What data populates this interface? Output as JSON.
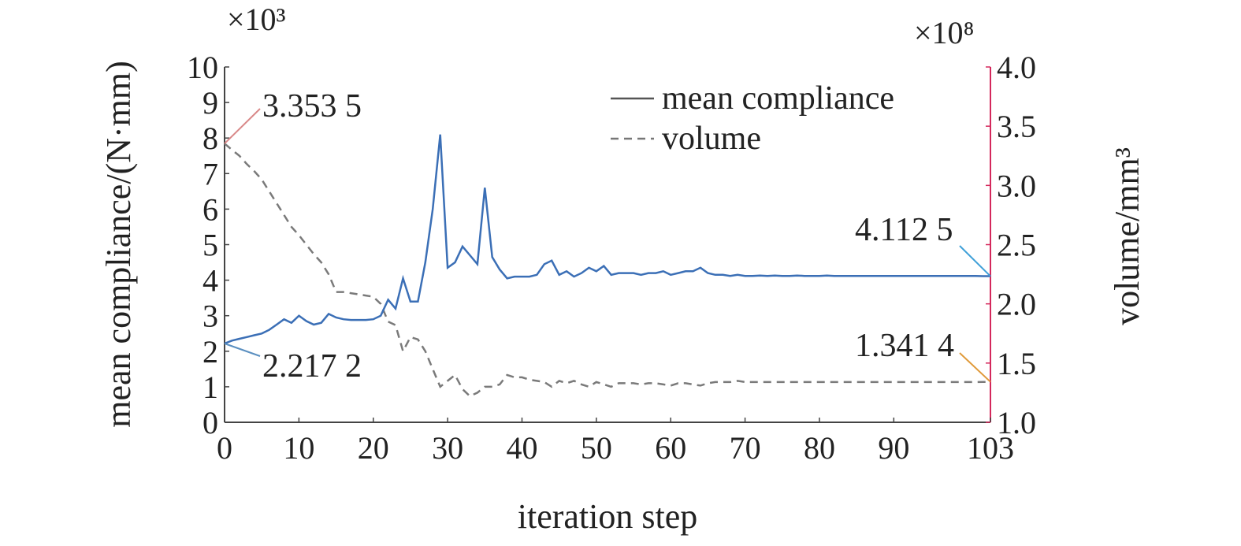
{
  "chart_data": {
    "type": "line",
    "xlabel": "iteration step",
    "ylabel_left": "mean compliance/(N·mm)",
    "ylabel_right": "volume/mm³",
    "left_multiplier": "×10³",
    "right_multiplier": "×10⁸",
    "xlim": [
      0,
      103
    ],
    "ylim_left": [
      0,
      10
    ],
    "ylim_right": [
      1.0,
      4.0
    ],
    "x_ticks": [
      0,
      10,
      20,
      30,
      40,
      50,
      60,
      70,
      80,
      90,
      103
    ],
    "y_left_ticks": [
      0,
      1,
      2,
      3,
      4,
      5,
      6,
      7,
      8,
      9,
      10
    ],
    "y_right_ticks": [
      "1.0",
      "1.5",
      "2.0",
      "2.5",
      "3.0",
      "3.5",
      "4.0"
    ],
    "grid": false,
    "legend_position": "top-right",
    "series": [
      {
        "name": "mean compliance",
        "axis": "left",
        "style": "solid",
        "color": "#3b6fb6",
        "x": [
          0,
          1,
          2,
          3,
          4,
          5,
          6,
          7,
          8,
          9,
          10,
          11,
          12,
          13,
          14,
          15,
          16,
          17,
          18,
          19,
          20,
          21,
          22,
          23,
          24,
          25,
          26,
          27,
          28,
          29,
          30,
          31,
          32,
          33,
          34,
          35,
          36,
          37,
          38,
          39,
          40,
          41,
          42,
          43,
          44,
          45,
          46,
          47,
          48,
          49,
          50,
          51,
          52,
          53,
          54,
          55,
          56,
          57,
          58,
          59,
          60,
          61,
          62,
          63,
          64,
          65,
          66,
          67,
          68,
          69,
          70,
          71,
          72,
          73,
          74,
          75,
          76,
          77,
          78,
          79,
          80,
          81,
          82,
          83,
          84,
          85,
          86,
          87,
          88,
          89,
          90,
          91,
          92,
          93,
          94,
          95,
          96,
          97,
          98,
          99,
          100,
          101,
          102,
          103
        ],
        "values": [
          2.2172,
          2.3,
          2.35,
          2.4,
          2.45,
          2.5,
          2.6,
          2.75,
          2.9,
          2.8,
          3.0,
          2.85,
          2.75,
          2.8,
          3.05,
          2.95,
          2.9,
          2.88,
          2.88,
          2.88,
          2.9,
          3.0,
          3.45,
          3.2,
          4.05,
          3.4,
          3.4,
          4.5,
          6.0,
          8.1,
          4.35,
          4.5,
          4.95,
          4.7,
          4.45,
          6.6,
          4.65,
          4.3,
          4.05,
          4.1,
          4.1,
          4.1,
          4.15,
          4.45,
          4.55,
          4.15,
          4.25,
          4.1,
          4.2,
          4.35,
          4.25,
          4.4,
          4.15,
          4.2,
          4.2,
          4.2,
          4.15,
          4.2,
          4.2,
          4.25,
          4.15,
          4.2,
          4.25,
          4.25,
          4.35,
          4.2,
          4.15,
          4.15,
          4.12,
          4.15,
          4.12,
          4.12,
          4.13,
          4.12,
          4.13,
          4.12,
          4.12,
          4.13,
          4.12,
          4.12,
          4.12,
          4.13,
          4.12,
          4.12,
          4.12,
          4.12,
          4.12,
          4.12,
          4.12,
          4.12,
          4.12,
          4.12,
          4.12,
          4.12,
          4.12,
          4.12,
          4.12,
          4.12,
          4.12,
          4.12,
          4.12,
          4.12,
          4.1125,
          4.1125
        ]
      },
      {
        "name": "volume",
        "axis": "right",
        "style": "dashed",
        "color": "#7a7a7a",
        "x": [
          0,
          1,
          2,
          3,
          4,
          5,
          6,
          7,
          8,
          9,
          10,
          11,
          12,
          13,
          14,
          15,
          16,
          17,
          18,
          19,
          20,
          21,
          22,
          23,
          24,
          25,
          26,
          27,
          28,
          29,
          30,
          31,
          32,
          33,
          34,
          35,
          36,
          37,
          38,
          39,
          40,
          41,
          42,
          43,
          44,
          45,
          46,
          47,
          48,
          49,
          50,
          51,
          52,
          53,
          54,
          55,
          56,
          57,
          58,
          59,
          60,
          61,
          62,
          63,
          64,
          65,
          66,
          67,
          68,
          69,
          70,
          71,
          72,
          73,
          74,
          75,
          76,
          77,
          78,
          79,
          80,
          81,
          82,
          83,
          84,
          85,
          86,
          87,
          88,
          89,
          90,
          91,
          92,
          93,
          94,
          95,
          96,
          97,
          98,
          99,
          100,
          101,
          102,
          103
        ],
        "values": [
          3.3535,
          3.3,
          3.25,
          3.18,
          3.12,
          3.05,
          2.95,
          2.85,
          2.75,
          2.65,
          2.58,
          2.5,
          2.42,
          2.35,
          2.25,
          2.1,
          2.1,
          2.09,
          2.08,
          2.07,
          2.06,
          2.0,
          1.85,
          1.82,
          1.6,
          1.72,
          1.7,
          1.6,
          1.45,
          1.3,
          1.35,
          1.4,
          1.28,
          1.22,
          1.25,
          1.3,
          1.3,
          1.32,
          1.4,
          1.38,
          1.38,
          1.36,
          1.35,
          1.34,
          1.3,
          1.35,
          1.33,
          1.35,
          1.32,
          1.3,
          1.34,
          1.32,
          1.3,
          1.33,
          1.33,
          1.33,
          1.32,
          1.33,
          1.33,
          1.32,
          1.31,
          1.33,
          1.33,
          1.32,
          1.31,
          1.33,
          1.34,
          1.34,
          1.34,
          1.35,
          1.34,
          1.34,
          1.34,
          1.34,
          1.34,
          1.34,
          1.34,
          1.34,
          1.34,
          1.34,
          1.34,
          1.34,
          1.34,
          1.34,
          1.34,
          1.34,
          1.34,
          1.34,
          1.34,
          1.34,
          1.34,
          1.34,
          1.34,
          1.34,
          1.34,
          1.34,
          1.34,
          1.34,
          1.34,
          1.34,
          1.34,
          1.34,
          1.3414,
          1.3414
        ]
      }
    ],
    "annotations": [
      {
        "text": "3.353 5",
        "x": 0,
        "value": 3.3535,
        "axis": "right"
      },
      {
        "text": "2.217 2",
        "x": 0,
        "value": 2.2172,
        "axis": "left"
      },
      {
        "text": "4.112 5",
        "x": 103,
        "value": 4.1125,
        "axis": "left"
      },
      {
        "text": "1.341 4",
        "x": 103,
        "value": 1.3414,
        "axis": "right"
      }
    ]
  }
}
